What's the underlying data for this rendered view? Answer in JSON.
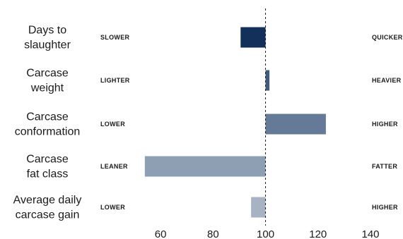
{
  "chart_data": {
    "type": "bar",
    "orientation": "horizontal",
    "baseline": 100,
    "xlim": [
      50,
      140
    ],
    "x_ticks": [
      "60",
      "80",
      "100",
      "120",
      "140"
    ],
    "x_tick_values": [
      60,
      80,
      100,
      120,
      140
    ],
    "grid": false,
    "reference_line": "dashed at 100",
    "rows": [
      {
        "label_lines": [
          "Days to",
          "slaughter"
        ],
        "low_label": "SLOWER",
        "high_label": "QUICKER",
        "value": 90.5,
        "color": "#12305a"
      },
      {
        "label_lines": [
          "Carcase",
          "weight"
        ],
        "low_label": "LIGHTER",
        "high_label": "HEAVIER",
        "value": 101.5,
        "color": "#405a7c"
      },
      {
        "label_lines": [
          "Carcase",
          "conformation"
        ],
        "low_label": "LOWER",
        "high_label": "HIGHER",
        "value": 123,
        "color": "#657a96"
      },
      {
        "label_lines": [
          "Carcase",
          "fat class"
        ],
        "low_label": "LEANER",
        "high_label": "FATTER",
        "value": 54,
        "color": "#8f9fb3"
      },
      {
        "label_lines": [
          "Average daily",
          "carcase gain"
        ],
        "low_label": "LOWER",
        "high_label": "HIGHER",
        "value": 94.5,
        "color": "#a7b3c3"
      }
    ]
  }
}
